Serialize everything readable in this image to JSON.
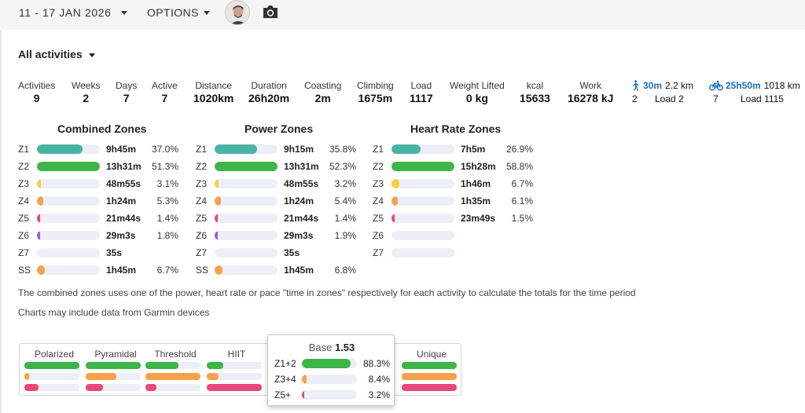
{
  "header": {
    "date_range": "11 - 17 JAN 2026",
    "options_label": "OPTIONS",
    "avatar_icon": "user-avatar",
    "camera_icon": "camera-icon"
  },
  "filter": {
    "label": "All activities"
  },
  "stats": [
    {
      "label": "Activities",
      "value": "9"
    },
    {
      "label": "Weeks",
      "value": "2"
    },
    {
      "label": "Days",
      "value": "7"
    },
    {
      "label": "Active",
      "value": "7"
    },
    {
      "label": "Distance",
      "value": "1020km"
    },
    {
      "label": "Duration",
      "value": "26h20m"
    },
    {
      "label": "Coasting",
      "value": "2m"
    },
    {
      "label": "Climbing",
      "value": "1675m"
    },
    {
      "label": "Load",
      "value": "1117"
    },
    {
      "label": "Weight Lifted",
      "value": "0 kg"
    },
    {
      "label": "kcal",
      "value": "15633"
    },
    {
      "label": "Work",
      "value": "16278 kJ"
    }
  ],
  "sports": [
    {
      "icon": "walk-icon",
      "duration": "30m",
      "distance": "2.2 km",
      "count": "2",
      "load": "Load 2"
    },
    {
      "icon": "bike-icon",
      "duration": "25h50m",
      "distance": "1018 km",
      "count": "7",
      "load": "Load 1115"
    }
  ],
  "colors": {
    "z1": "#4bb3a4",
    "z2": "#3db548",
    "z3": "#f6cf3d",
    "z4": "#f7a14a",
    "z5": "#e8487a",
    "z6": "#9b5bd6",
    "ss": "#f7a14a",
    "track": "#eceff7",
    "link": "#1a6fc4"
  },
  "zones": [
    {
      "title": "Combined Zones",
      "rows": [
        {
          "zone": "Z1",
          "time": "9h45m",
          "pct": "37.0%",
          "fraction": 0.72,
          "color": "#4bb3a4"
        },
        {
          "zone": "Z2",
          "time": "13h31m",
          "pct": "51.3%",
          "fraction": 1.0,
          "color": "#3db548"
        },
        {
          "zone": "Z3",
          "time": "48m55s",
          "pct": "3.1%",
          "fraction": 0.06,
          "color": "#f6cf3d"
        },
        {
          "zone": "Z4",
          "time": "1h24m",
          "pct": "5.3%",
          "fraction": 0.1,
          "color": "#f7a14a"
        },
        {
          "zone": "Z5",
          "time": "21m44s",
          "pct": "1.4%",
          "fraction": 0.03,
          "color": "#e8487a"
        },
        {
          "zone": "Z6",
          "time": "29m3s",
          "pct": "1.8%",
          "fraction": 0.04,
          "color": "#9b5bd6"
        },
        {
          "zone": "Z7",
          "time": "35s",
          "pct": "",
          "fraction": 0,
          "color": "#e8487a"
        },
        {
          "zone": "SS",
          "time": "1h45m",
          "pct": "6.7%",
          "fraction": 0.13,
          "color": "#f7a14a"
        }
      ]
    },
    {
      "title": "Power Zones",
      "rows": [
        {
          "zone": "Z1",
          "time": "9h15m",
          "pct": "35.8%",
          "fraction": 0.68,
          "color": "#4bb3a4"
        },
        {
          "zone": "Z2",
          "time": "13h31m",
          "pct": "52.3%",
          "fraction": 1.0,
          "color": "#3db548"
        },
        {
          "zone": "Z3",
          "time": "48m55s",
          "pct": "3.2%",
          "fraction": 0.06,
          "color": "#f6cf3d"
        },
        {
          "zone": "Z4",
          "time": "1h24m",
          "pct": "5.4%",
          "fraction": 0.1,
          "color": "#f7a14a"
        },
        {
          "zone": "Z5",
          "time": "21m44s",
          "pct": "1.4%",
          "fraction": 0.03,
          "color": "#e8487a"
        },
        {
          "zone": "Z6",
          "time": "29m3s",
          "pct": "1.9%",
          "fraction": 0.04,
          "color": "#9b5bd6"
        },
        {
          "zone": "Z7",
          "time": "35s",
          "pct": "",
          "fraction": 0,
          "color": "#e8487a"
        },
        {
          "zone": "SS",
          "time": "1h45m",
          "pct": "6.8%",
          "fraction": 0.13,
          "color": "#f7a14a"
        }
      ]
    },
    {
      "title": "Heart Rate Zones",
      "rows": [
        {
          "zone": "Z1",
          "time": "7h5m",
          "pct": "26.9%",
          "fraction": 0.46,
          "color": "#4bb3a4"
        },
        {
          "zone": "Z2",
          "time": "15h28m",
          "pct": "58.8%",
          "fraction": 1.0,
          "color": "#3db548"
        },
        {
          "zone": "Z3",
          "time": "1h46m",
          "pct": "6.7%",
          "fraction": 0.12,
          "color": "#f6cf3d"
        },
        {
          "zone": "Z4",
          "time": "1h35m",
          "pct": "6.1%",
          "fraction": 0.1,
          "color": "#f7a14a"
        },
        {
          "zone": "Z5",
          "time": "23m49s",
          "pct": "1.5%",
          "fraction": 0.03,
          "color": "#e8487a"
        },
        {
          "zone": "Z6",
          "time": "",
          "pct": "",
          "fraction": 0,
          "color": "#9b5bd6"
        },
        {
          "zone": "Z7",
          "time": "",
          "pct": "",
          "fraction": 0,
          "color": "#e8487a"
        }
      ]
    }
  ],
  "notes": [
    "The combined zones uses one of the power, heart rate or pace \"time in zones\" respectively for each activity to calculate the totals for the time period",
    "Charts may include data from Garmin devices"
  ],
  "distribution": {
    "columns": [
      {
        "label": "Polarized",
        "fractions": [
          1.0,
          0.08,
          0.26
        ]
      },
      {
        "label": "Pyramidal",
        "fractions": [
          1.0,
          0.55,
          0.32
        ]
      },
      {
        "label": "Threshold",
        "fractions": [
          0.6,
          1.0,
          0.2
        ]
      },
      {
        "label": "HIIT",
        "fractions": [
          0.3,
          0.22,
          1.0
        ]
      },
      {
        "label": "Unique",
        "fractions": [
          1.0,
          1.0,
          1.0
        ]
      }
    ],
    "row_colors": [
      "#3db548",
      "#f7a14a",
      "#e8487a"
    ]
  },
  "popup": {
    "title": "Base",
    "score": "1.53",
    "rows": [
      {
        "label": "Z1+2",
        "pct": "88.3%",
        "fraction": 0.883,
        "color": "#3db548"
      },
      {
        "label": "Z3+4",
        "pct": "8.4%",
        "fraction": 0.084,
        "color": "#f7a14a"
      },
      {
        "label": "Z5+",
        "pct": "3.2%",
        "fraction": 0.032,
        "color": "#e8487a"
      }
    ]
  }
}
